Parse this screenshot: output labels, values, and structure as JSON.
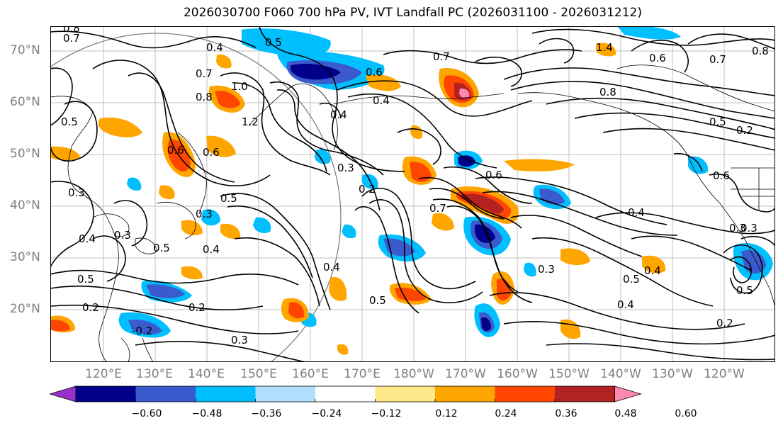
{
  "title": "2026030700 F060 700 hPa PV, IVT Landfall PC (2026031100 - 2026031212)",
  "lat_labels": [
    "70°N",
    "60°N",
    "50°N",
    "40°N",
    "30°N",
    "20°N"
  ],
  "lon_labels": [
    "120°E",
    "130°E",
    "140°E",
    "150°E",
    "160°E",
    "170°E",
    "180°W",
    "170°W",
    "160°W",
    "150°W",
    "140°W",
    "130°W",
    "120°W"
  ],
  "contour_labels": [
    "0.8",
    "0.7",
    "0.4",
    "0.5",
    "0.7",
    "1.0",
    "0.8",
    "1.2",
    "0.6",
    "0.4",
    "0.4",
    "0.7",
    "0.5",
    "0.6",
    "0.3",
    "0.2",
    "0.6",
    "0.7",
    "1.4",
    "0.8",
    "0.6",
    "0.7",
    "0.8",
    "0.5",
    "0.2",
    "0.6",
    "0.4",
    "0.3",
    "0.3",
    "0.5",
    "0.4",
    "0.3",
    "0.5",
    "0.3",
    "0.5",
    "0.4",
    "0.4",
    "0.2",
    "0.3",
    "0.2",
    "-0.2",
    "0.5",
    "0.3",
    "0.4",
    "0.5",
    "0.4",
    "0.2",
    "0.5",
    "0.3",
    "0.6"
  ],
  "colorbar": {
    "levels": [
      "−0.60",
      "−0.48",
      "−0.36",
      "−0.24",
      "−0.12",
      "0.12",
      "0.24",
      "0.36",
      "0.48",
      "0.60"
    ],
    "colors": [
      "#9932cc",
      "#00008b",
      "#3a5acd",
      "#00bfff",
      "#b0e0ff",
      "#ffffff",
      "#ffe88a",
      "#ffa500",
      "#ff4500",
      "#b22222",
      "#ff88b0"
    ]
  },
  "colors": {
    "contour": "#000000",
    "coast": "#000000",
    "grid": "#bfbfbf",
    "axis_label": "#808080"
  }
}
